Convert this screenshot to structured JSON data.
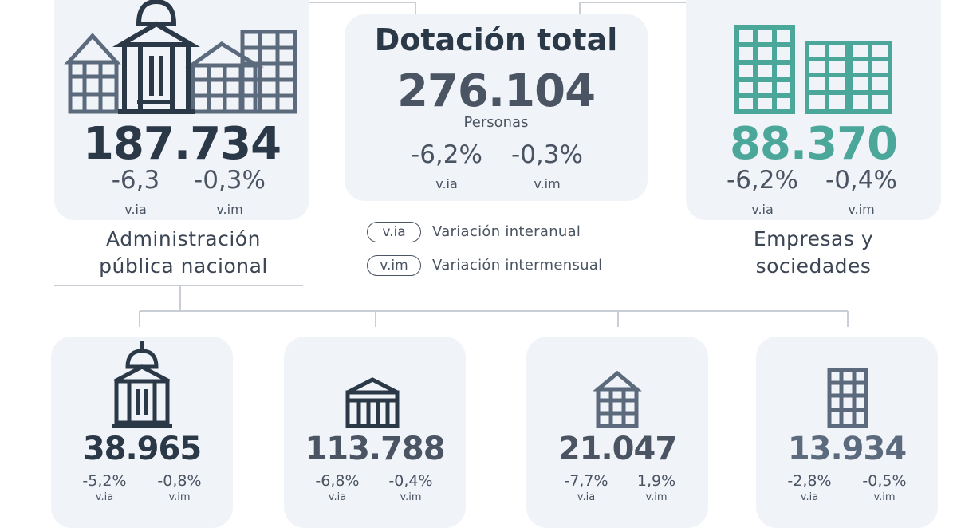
{
  "colors": {
    "primary": "#2b3847",
    "steel": "#5b6b7d",
    "teal": "#4aa79a",
    "card": "#f0f3f8",
    "line": "#c9ced6"
  },
  "total": {
    "title": "Dotación total",
    "value": "276.104",
    "unit": "Personas",
    "via": "-6,2%",
    "vim": "-0,3%",
    "via_label": "v.ia",
    "vim_label": "v.im"
  },
  "apn": {
    "value": "187.734",
    "via": "-6,3",
    "vim": "-0,3%",
    "via_label": "v.ia",
    "vim_label": "v.im",
    "label_line1": "Administración",
    "label_line2": "pública nacional",
    "icon": "government-buildings-icon"
  },
  "empresas": {
    "value": "88.370",
    "via": "-6,2%",
    "vim": "-0,4%",
    "via_label": "v.ia",
    "vim_label": "v.im",
    "label_line1": "Empresas y",
    "label_line2": "sociedades",
    "icon": "office-buildings-icon"
  },
  "legend": [
    {
      "abbr": "v.ia",
      "text": "Variación interanual"
    },
    {
      "abbr": "v.im",
      "text": "Variación intermensual"
    }
  ],
  "sub_cards": [
    {
      "value": "38.965",
      "via": "-5,2%",
      "vim": "-0,8%",
      "via_label": "v.ia",
      "vim_label": "v.im",
      "icon": "domed-building-icon"
    },
    {
      "value": "113.788",
      "via": "-6,8%",
      "vim": "-0,4%",
      "via_label": "v.ia",
      "vim_label": "v.im",
      "icon": "columned-building-icon"
    },
    {
      "value": "21.047",
      "via": "-7,7%",
      "vim": "1,9%",
      "via_label": "v.ia",
      "vim_label": "v.im",
      "icon": "gabled-building-icon"
    },
    {
      "value": "13.934",
      "via": "-2,8%",
      "vim": "-0,5%",
      "via_label": "v.ia",
      "vim_label": "v.im",
      "icon": "tower-building-icon"
    }
  ]
}
